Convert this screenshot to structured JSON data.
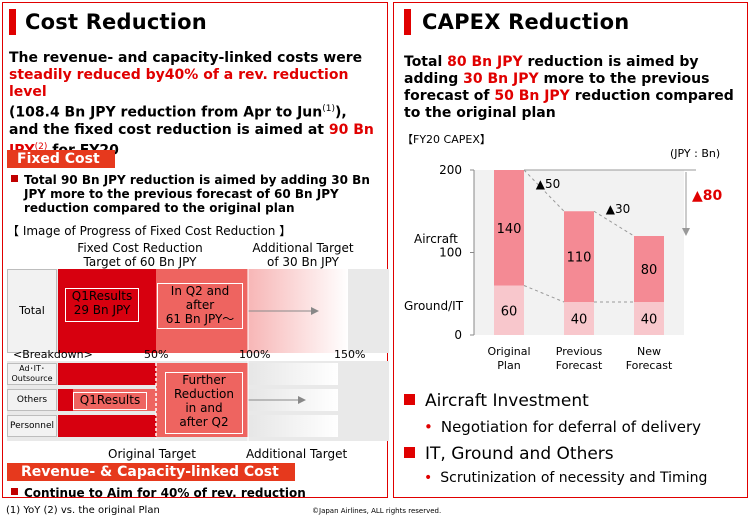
{
  "left": {
    "title": "Cost Reduction",
    "lead": {
      "l1": "The revenue- and capacity-linked costs were",
      "l2": "steadily reduced by40% of a rev. reduction level",
      "l3a": "(108.4 Bn JPY reduction from Apr to Jun",
      "l3sup": "(1)",
      "l3b": "),",
      "l4a": "and the fixed cost reduction is aimed at ",
      "l4b": "90 Bn",
      "l5a": "JPY",
      "l5sup": "(2)",
      "l5b": " for FY20"
    },
    "fixed_cost": {
      "header": "Fixed Cost",
      "bullet_l1": "Total 90 Bn JPY reduction is aimed by adding 30 Bn",
      "bullet_l2": "JPY more to the previous forecast of 60 Bn JPY",
      "bullet_l3": "reduction compared to the original plan",
      "image_caption": "【 Image of Progress of Fixed Cost Reduction 】",
      "fixed_target_l1": "Fixed Cost Reduction",
      "fixed_target_l2": "Target of 60 Bn JPY",
      "additional_l1": "Additional Target",
      "additional_l2": "of 30 Bn JPY",
      "total_label": "Total",
      "q1_l1": "Q1Results",
      "q1_l2": "29 Bn JPY",
      "q2_l1": "In Q2 and",
      "q2_l2": "after",
      "q2_l3": "61 Bn JPY～",
      "breakdown": "<Breakdown>",
      "pct50": "50%",
      "pct100": "100%",
      "pct150": "150%",
      "rows": [
        "Ad･IT･Outsource",
        "Others",
        "Personnel"
      ],
      "q1_small": "Q1Results",
      "further_l1": "Further",
      "further_l2": "Reduction",
      "further_l3": "in and",
      "further_l4": "after Q2",
      "original_target": "Original Target",
      "additional_target": "Additional Target"
    },
    "revenue": {
      "header": "Revenue- & Capacity-linked Cost",
      "bullet": "Continue to Aim for 40% of rev. reduction"
    },
    "footnote": "(1)  YoY    (2)  vs. the original  Plan",
    "copyright": "©Japan Airlines, ALL rights reserved."
  },
  "right": {
    "title": "CAPEX Reduction",
    "lead": {
      "l1a": "Total ",
      "l1b": "80 Bn JPY",
      "l1c": " reduction is aimed by",
      "l2a": "adding ",
      "l2b": "30 Bn JPY",
      "l2c": " more to the previous",
      "l3a": "forecast of ",
      "l3b": "50 Bn JPY",
      "l3c": " reduction compared",
      "l4": "to the original plan"
    },
    "capex_caption": "【FY20 CAPEX】",
    "unit": "(JPY : Bn)",
    "aircraft_label": "Aircraft",
    "ground_label": "Ground/IT",
    "delta1": "▲50",
    "delta2": "▲30",
    "delta_total": "▲80",
    "bullets": {
      "b1": "Aircraft Investment",
      "b1_sub": "Negotiation for deferral of delivery",
      "b2": "IT, Ground and Others",
      "b2_sub": "Scrutinization of necessity and Timing"
    }
  },
  "chart_data": {
    "type": "bar",
    "stacked": true,
    "title": "【FY20 CAPEX】",
    "unit": "(JPY : Bn)",
    "categories": [
      "Original\nPlan",
      "Previous\nForecast",
      "New\nForecast"
    ],
    "series": [
      {
        "name": "Ground/IT",
        "values": [
          60,
          40,
          40
        ],
        "color": "#f8c7cc"
      },
      {
        "name": "Aircraft",
        "values": [
          140,
          110,
          80
        ],
        "color": "#f48a94"
      }
    ],
    "ylim": [
      0,
      200
    ],
    "yticks": [
      0,
      100,
      200
    ],
    "grid": false
  }
}
